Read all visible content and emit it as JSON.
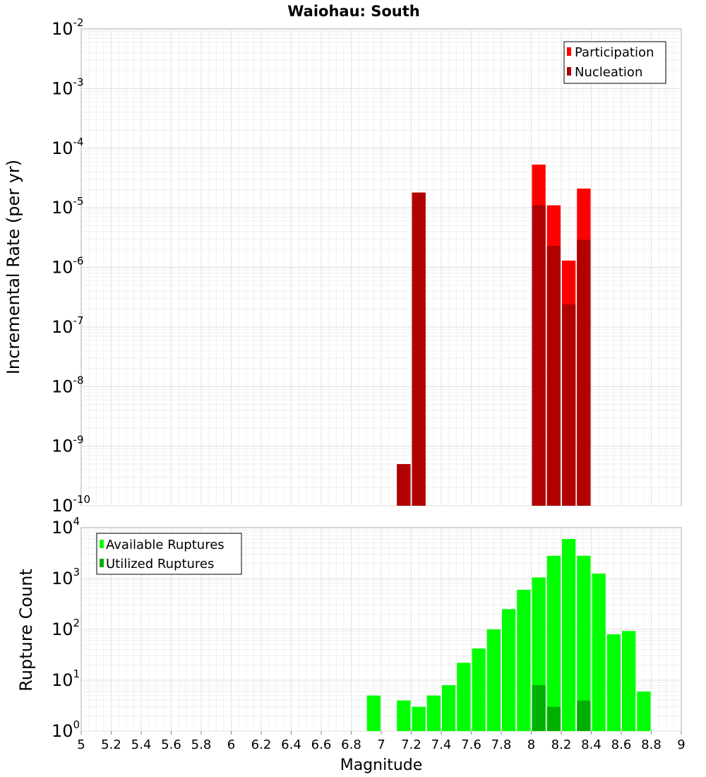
{
  "title": "Waiohau: South",
  "colors": {
    "participation": "#ff0000",
    "nucleation": "#b00000",
    "available": "#00ff00",
    "utilized": "#00b000"
  },
  "chart_data": [
    {
      "type": "bar",
      "scale": "log",
      "ylabel": "Incremental Rate (per yr)",
      "ylim_exponents": [
        -10,
        -2
      ],
      "legend_position": "top-right",
      "series": [
        {
          "name": "Participation",
          "color_key": "participation",
          "points": [
            {
              "x": 7.15,
              "y": 5e-10
            },
            {
              "x": 7.25,
              "y": 1.8e-05
            },
            {
              "x": 8.05,
              "y": 5.3e-05
            },
            {
              "x": 8.15,
              "y": 1.1e-05
            },
            {
              "x": 8.25,
              "y": 1.3e-06
            },
            {
              "x": 8.35,
              "y": 2.1e-05
            }
          ]
        },
        {
          "name": "Nucleation",
          "color_key": "nucleation",
          "points": [
            {
              "x": 7.15,
              "y": 5e-10
            },
            {
              "x": 7.25,
              "y": 1.8e-05
            },
            {
              "x": 8.05,
              "y": 1.1e-05
            },
            {
              "x": 8.15,
              "y": 2.3e-06
            },
            {
              "x": 8.25,
              "y": 2.4e-07
            },
            {
              "x": 8.35,
              "y": 2.9e-06
            }
          ]
        }
      ]
    },
    {
      "type": "bar",
      "scale": "log",
      "ylabel": "Rupture Count",
      "xlabel": "Magnitude",
      "ylim_exponents": [
        0,
        4
      ],
      "legend_position": "top-left",
      "xlim": [
        5,
        9
      ],
      "xticks": [
        "5",
        "5.2",
        "5.4",
        "5.6",
        "5.8",
        "6",
        "6.2",
        "6.4",
        "6.6",
        "6.8",
        "7",
        "7.2",
        "7.4",
        "7.6",
        "7.8",
        "8",
        "8.2",
        "8.4",
        "8.6",
        "8.8",
        "9"
      ],
      "series": [
        {
          "name": "Available Ruptures",
          "color_key": "available",
          "points": [
            {
              "x": 6.95,
              "y": 5
            },
            {
              "x": 7.15,
              "y": 4
            },
            {
              "x": 7.25,
              "y": 3
            },
            {
              "x": 7.35,
              "y": 5
            },
            {
              "x": 7.45,
              "y": 8
            },
            {
              "x": 7.55,
              "y": 22
            },
            {
              "x": 7.65,
              "y": 42
            },
            {
              "x": 7.75,
              "y": 100
            },
            {
              "x": 7.85,
              "y": 250
            },
            {
              "x": 7.95,
              "y": 600
            },
            {
              "x": 8.05,
              "y": 1050
            },
            {
              "x": 8.15,
              "y": 2800
            },
            {
              "x": 8.25,
              "y": 6000
            },
            {
              "x": 8.35,
              "y": 2800
            },
            {
              "x": 8.45,
              "y": 1250
            },
            {
              "x": 8.55,
              "y": 80
            },
            {
              "x": 8.65,
              "y": 93
            },
            {
              "x": 8.75,
              "y": 6
            }
          ]
        },
        {
          "name": "Utilized Ruptures",
          "color_key": "utilized",
          "points": [
            {
              "x": 7.15,
              "y": 1
            },
            {
              "x": 7.25,
              "y": 1
            },
            {
              "x": 8.05,
              "y": 8
            },
            {
              "x": 8.15,
              "y": 3
            },
            {
              "x": 8.25,
              "y": 1
            },
            {
              "x": 8.35,
              "y": 4
            }
          ]
        }
      ]
    }
  ]
}
